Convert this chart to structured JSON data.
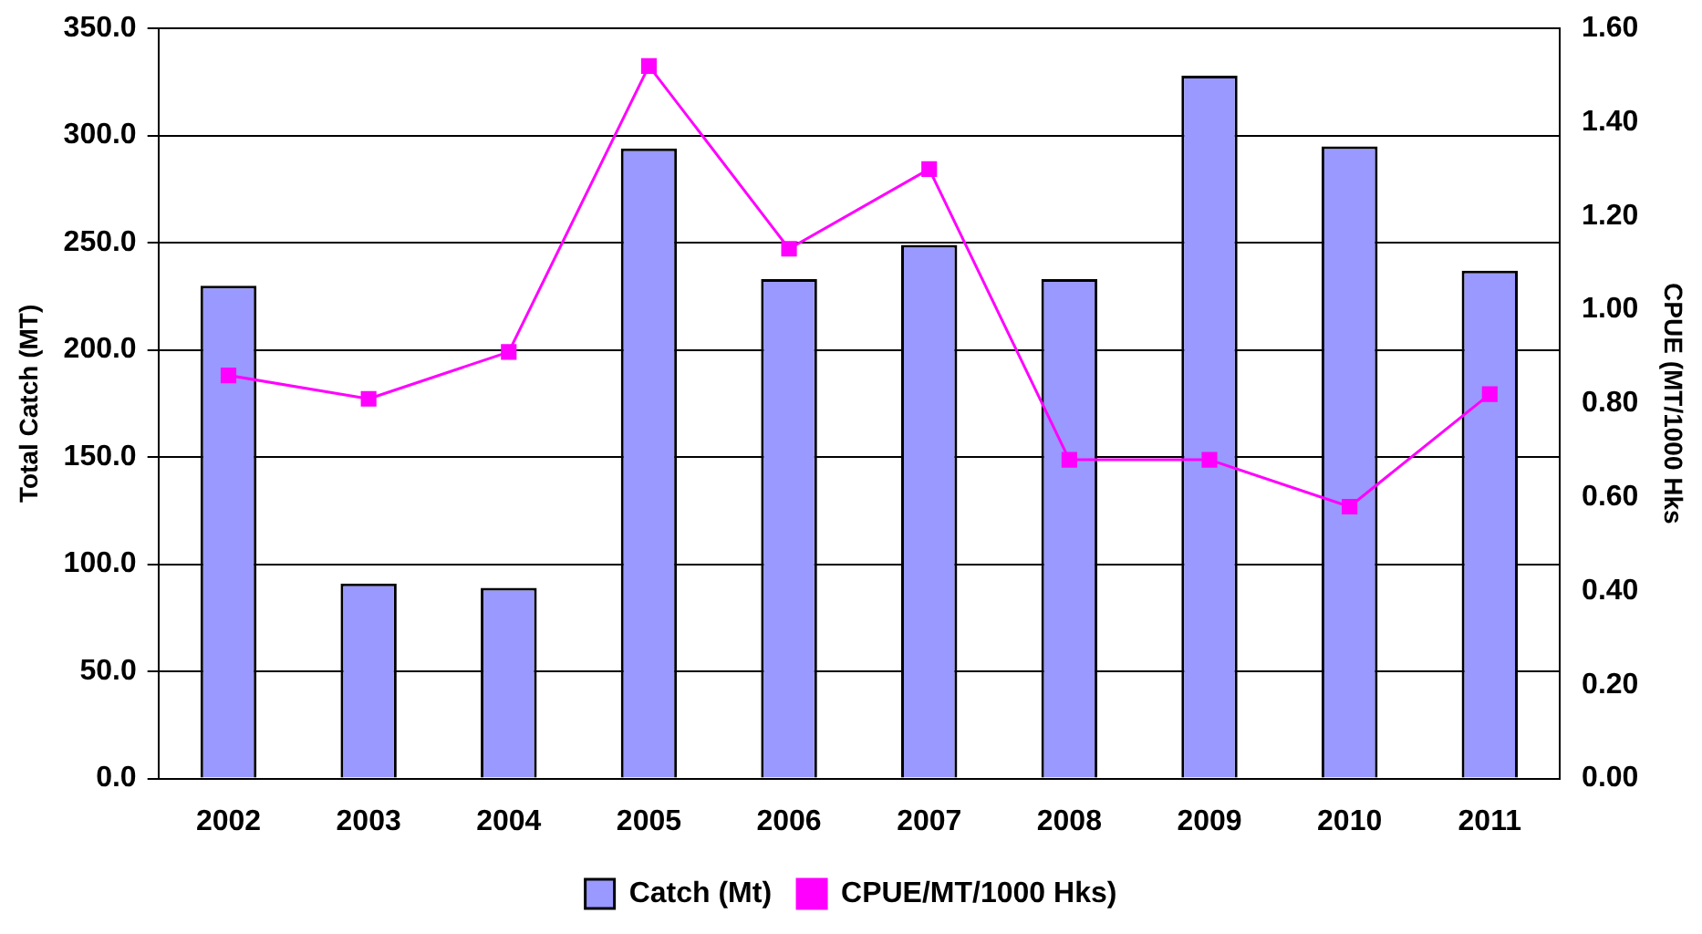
{
  "chart_data": {
    "type": "bar",
    "ylabel": "Total Catch (MT)",
    "y2label": "CPUE (MT/1000 Hks",
    "categories": [
      "2002",
      "2003",
      "2004",
      "2005",
      "2006",
      "2007",
      "2008",
      "2009",
      "2010",
      "2011"
    ],
    "series": [
      {
        "name": "Catch (Mt)",
        "color": "#9999ff",
        "values": [
          230,
          91,
          89,
          294,
          233,
          249,
          233,
          328,
          295,
          237
        ]
      },
      {
        "name": "CPUE/MT/1000 Hks)",
        "type": "line",
        "axis": "y2",
        "color": "#ff00ff",
        "marker": "square",
        "values": [
          0.86,
          0.81,
          0.91,
          1.52,
          1.13,
          1.3,
          0.68,
          0.68,
          0.58,
          0.82
        ]
      }
    ],
    "ylim": [
      0,
      350
    ],
    "yticks": [
      {
        "value": 0,
        "label": "0.0"
      },
      {
        "value": 50,
        "label": "50.0"
      },
      {
        "value": 100,
        "label": "100.0"
      },
      {
        "value": 150,
        "label": "150.0"
      },
      {
        "value": 200,
        "label": "200.0"
      },
      {
        "value": 250,
        "label": "250.0"
      },
      {
        "value": 300,
        "label": "300.0"
      },
      {
        "value": 350,
        "label": "350.0"
      }
    ],
    "y2lim": [
      0,
      1.6
    ],
    "y2ticks": [
      {
        "value": 0,
        "label": "0.00"
      },
      {
        "value": 0.2,
        "label": "0.20"
      },
      {
        "value": 0.4,
        "label": "0.40"
      },
      {
        "value": 0.6,
        "label": "0.60"
      },
      {
        "value": 0.8,
        "label": "0.80"
      },
      {
        "value": 1.0,
        "label": "1.00"
      },
      {
        "value": 1.2,
        "label": "1.20"
      },
      {
        "value": 1.4,
        "label": "1.40"
      },
      {
        "value": 1.6,
        "label": "1.60"
      }
    ],
    "grid": "y",
    "legend": "bottom"
  }
}
